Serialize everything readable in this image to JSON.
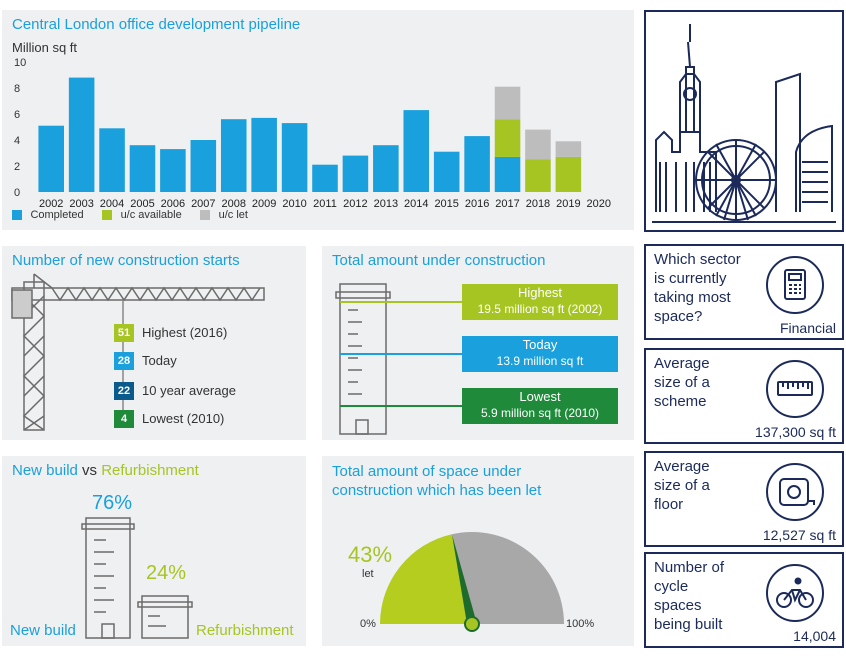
{
  "pipeline": {
    "title": "Central London office development pipeline",
    "unit": "Million sq ft",
    "legend": [
      "Completed",
      "u/c available",
      "u/c let"
    ]
  },
  "chart_data": {
    "type": "bar",
    "stacked": true,
    "categories": [
      "2002",
      "2003",
      "2004",
      "2005",
      "2006",
      "2007",
      "2008",
      "2009",
      "2010",
      "2011",
      "2012",
      "2013",
      "2014",
      "2015",
      "2016",
      "2017",
      "2018",
      "2019",
      "2020"
    ],
    "series": [
      {
        "name": "Completed",
        "color": "#1aa0dc",
        "values": [
          5.1,
          8.8,
          4.9,
          3.6,
          3.3,
          4.0,
          5.6,
          5.7,
          5.3,
          2.1,
          2.8,
          3.6,
          6.3,
          3.1,
          4.3,
          2.7,
          0,
          0,
          0
        ]
      },
      {
        "name": "u/c available",
        "color": "#a6c522",
        "values": [
          0,
          0,
          0,
          0,
          0,
          0,
          0,
          0,
          0,
          0,
          0,
          0,
          0,
          0,
          0,
          2.9,
          2.5,
          2.7,
          0
        ]
      },
      {
        "name": "u/c let",
        "color": "#bdbdbd",
        "values": [
          0,
          0,
          0,
          0,
          0,
          0,
          0,
          0,
          0,
          0,
          0,
          0,
          0,
          0,
          0,
          2.5,
          2.3,
          1.2,
          0
        ]
      }
    ],
    "ylabel": "Million sq ft",
    "yticks": [
      0,
      2,
      4,
      6,
      8,
      10
    ],
    "ylim": [
      0,
      10
    ],
    "legend_position": "bottom-left"
  },
  "starts": {
    "title": "Number of new construction starts",
    "items": [
      {
        "value": "51",
        "label": "Highest (2016)",
        "color": "#a6c522"
      },
      {
        "value": "28",
        "label": "Today",
        "color": "#1aa0dc"
      },
      {
        "value": "22",
        "label": "10 year average",
        "color": "#0a5a8c"
      },
      {
        "value": "4",
        "label": "Lowest (2010)",
        "color": "#1e8a3a"
      }
    ]
  },
  "under_construction": {
    "title": "Total amount under construction",
    "highest_title": "Highest",
    "highest_value": "19.5 million sq ft (2002)",
    "today_title": "Today",
    "today_value": "13.9 million sq ft",
    "lowest_title": "Lowest",
    "lowest_value": "5.9 million sq ft (2010)"
  },
  "newbuild": {
    "title_a": "New build",
    "title_vs": " vs ",
    "title_b": "Refurbishment",
    "newbuild_pct": "76%",
    "refurb_pct": "24%",
    "newbuild_label": "New build",
    "refurb_label": "Refurbishment"
  },
  "let_gauge": {
    "title_line1": "Total amount of space under",
    "title_line2": "construction which has been let",
    "pct": "43%",
    "pct_label": "let",
    "value_fraction": 0.43,
    "min_label": "0%",
    "max_label": "100%"
  },
  "cards": {
    "sector_q": [
      "Which sector",
      "is currently",
      "taking most",
      "space?"
    ],
    "sector_val": "Financial",
    "scheme_q": [
      "Average",
      "size of a",
      "scheme"
    ],
    "scheme_val": "137,300 sq ft",
    "floor_q": [
      "Average",
      "size of a",
      "floor"
    ],
    "floor_val": "12,527 sq ft",
    "cycle_q": [
      "Number of",
      "cycle",
      "spaces",
      "being built"
    ],
    "cycle_val": "14,004"
  }
}
